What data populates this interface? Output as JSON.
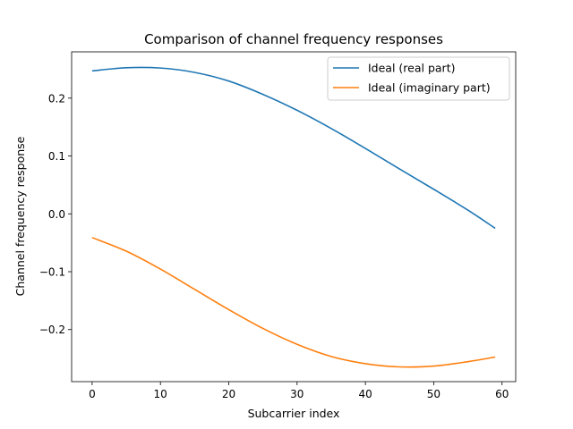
{
  "chart_data": {
    "type": "line",
    "title": "Comparison of channel frequency responses",
    "xlabel": "Subcarrier index",
    "ylabel": "Channel frequency response",
    "xlim": [
      -3,
      62
    ],
    "ylim": [
      -0.29,
      0.28
    ],
    "xticks": [
      0,
      10,
      20,
      30,
      40,
      50,
      60
    ],
    "yticks": [
      -0.2,
      -0.1,
      0.0,
      0.1,
      0.2
    ],
    "xtick_labels": [
      "0",
      "10",
      "20",
      "30",
      "40",
      "50",
      "60"
    ],
    "ytick_labels": [
      "−0.2",
      "−0.1",
      "0.0",
      "0.1",
      "0.2"
    ],
    "grid": false,
    "legend_position": "top-right",
    "x": [
      0,
      5,
      10,
      15,
      20,
      25,
      30,
      35,
      40,
      45,
      50,
      55,
      59
    ],
    "series": [
      {
        "name": "Ideal (real part)",
        "color": "#1f77b4",
        "values": [
          0.247,
          0.2525,
          0.252,
          0.2445,
          0.2295,
          0.2065,
          0.179,
          0.1475,
          0.113,
          0.0775,
          0.0425,
          0.0065,
          -0.025
        ]
      },
      {
        "name": "Ideal (imaginary part)",
        "color": "#ff7f0e",
        "values": [
          -0.041,
          -0.0645,
          -0.0955,
          -0.1305,
          -0.1655,
          -0.198,
          -0.2255,
          -0.2465,
          -0.259,
          -0.2645,
          -0.263,
          -0.2555,
          -0.2475
        ]
      }
    ]
  }
}
